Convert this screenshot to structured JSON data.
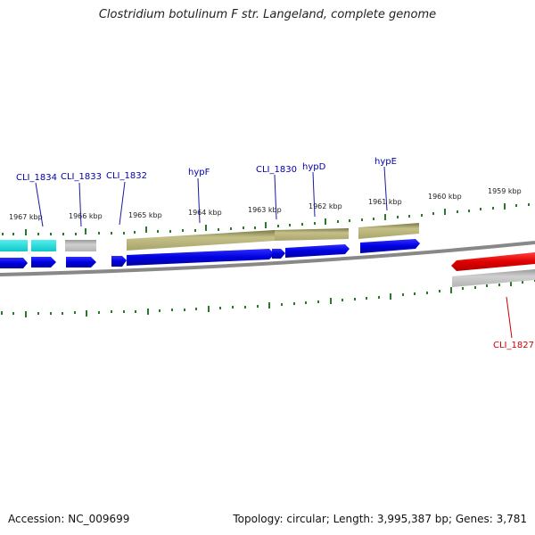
{
  "title": "Clostridium botulinum F str. Langeland, complete genome",
  "footer": {
    "accession": "Accession: NC_009699",
    "topology": "Topology: circular; Length: 3,995,387 bp; Genes: 3,781"
  },
  "kbp_labels": [
    "1967 kbp",
    "1966 kbp",
    "1965 kbp",
    "1964 kbp",
    "1963 kbp",
    "1962 kbp",
    "1961 kbp",
    "1960 kbp",
    "1959 kbp"
  ],
  "gene_labels": {
    "CLI_1834": "CLI_1834",
    "CLI_1833": "CLI_1833",
    "CLI_1832": "CLI_1832",
    "hypF": "hypF",
    "CLI_1830": "CLI_1830",
    "hypD": "hypD",
    "hypE": "hypE",
    "CLI_1827": "CLI_1827"
  },
  "colors": {
    "cds": "#0000e0",
    "gene_olive": "#b8b478",
    "gene_cyan": "#22d8d8",
    "gene_gray": "#bcbcbc",
    "gene_red": "#e00000",
    "backbone": "#888888",
    "tick": "#2a7a2a"
  }
}
